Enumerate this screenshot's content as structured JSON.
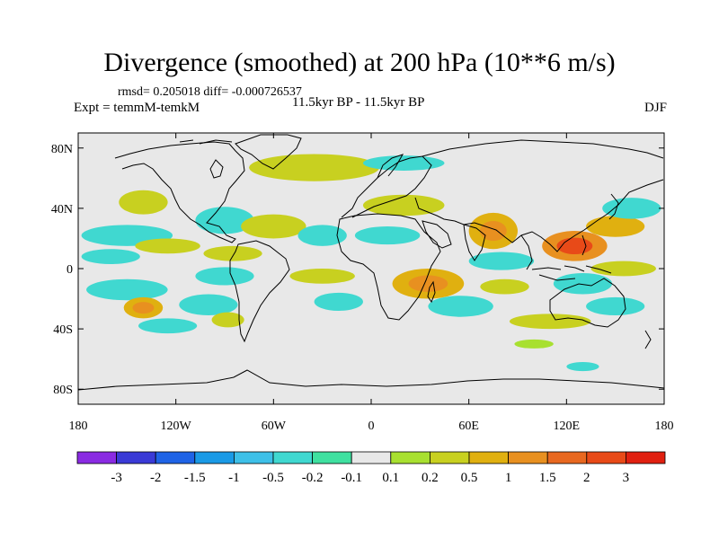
{
  "title": "Divergence (smoothed) at 200 hPa (10**6 m/s)",
  "stats": "rmsd= 0.205018 diff= -0.000726537",
  "experiment": "Expt = temmM-temkM",
  "period": "11.5kyr BP - 11.5kyr BP",
  "season": "DJF",
  "map": {
    "lon_range": [
      -180,
      180
    ],
    "lat_range": [
      -90,
      90
    ],
    "y_ticks": [
      {
        "lat": 80,
        "label": "80N"
      },
      {
        "lat": 40,
        "label": "40N"
      },
      {
        "lat": 0,
        "label": "0"
      },
      {
        "lat": -40,
        "label": "40S"
      },
      {
        "lat": -80,
        "label": "80S"
      }
    ],
    "x_ticks": [
      {
        "lon": -180,
        "label": "180"
      },
      {
        "lon": -120,
        "label": "120W"
      },
      {
        "lon": -60,
        "label": "60W"
      },
      {
        "lon": 0,
        "label": "0"
      },
      {
        "lon": 60,
        "label": "60E"
      },
      {
        "lon": 120,
        "label": "120E"
      },
      {
        "lon": 180,
        "label": "180"
      }
    ],
    "background_color": "#e8e8e8",
    "coastline_color": "#000000"
  },
  "colorbar": {
    "colors": [
      "#8a2be2",
      "#3a3ad6",
      "#1f63e6",
      "#1a9ae6",
      "#3ec0e8",
      "#40d8d0",
      "#3fe0a0",
      "#e8e8e8",
      "#a8e030",
      "#c8d020",
      "#e0b010",
      "#e89020",
      "#e86820",
      "#e84a18",
      "#e02010"
    ],
    "labels": [
      "-3",
      "-2",
      "-1.5",
      "-1",
      "-0.5",
      "-0.2",
      "-0.1",
      "0.1",
      "0.2",
      "0.5",
      "1",
      "1.5",
      "2",
      "3"
    ]
  },
  "chart_data": {
    "type": "heatmap",
    "title": "Divergence (smoothed) at 200 hPa (10**6 m/s)",
    "variable": "200 hPa divergence difference",
    "units": "10**6 m/s",
    "levels": [
      -3,
      -2,
      -1.5,
      -1,
      -0.5,
      -0.2,
      -0.1,
      0.1,
      0.2,
      0.5,
      1,
      1.5,
      2,
      3
    ],
    "xlim": [
      -180,
      180
    ],
    "ylim": [
      -90,
      90
    ],
    "features": [
      {
        "lon": -150,
        "lat": 22,
        "rx": 28,
        "ry": 7,
        "value": -0.3
      },
      {
        "lon": -160,
        "lat": 8,
        "rx": 18,
        "ry": 5,
        "value": -0.4
      },
      {
        "lon": -125,
        "lat": 15,
        "rx": 20,
        "ry": 5,
        "value": 0.3
      },
      {
        "lon": -150,
        "lat": -14,
        "rx": 25,
        "ry": 7,
        "value": -0.3
      },
      {
        "lon": -140,
        "lat": -26,
        "rx": 12,
        "ry": 7,
        "value": 0.8
      },
      {
        "lon": -125,
        "lat": -38,
        "rx": 18,
        "ry": 5,
        "value": -0.3
      },
      {
        "lon": -140,
        "lat": 44,
        "rx": 15,
        "ry": 8,
        "value": 0.4
      },
      {
        "lon": -90,
        "lat": 32,
        "rx": 18,
        "ry": 9,
        "value": -0.3
      },
      {
        "lon": -60,
        "lat": 28,
        "rx": 20,
        "ry": 8,
        "value": 0.4
      },
      {
        "lon": -85,
        "lat": 10,
        "rx": 18,
        "ry": 5,
        "value": 0.3
      },
      {
        "lon": -90,
        "lat": -5,
        "rx": 18,
        "ry": 6,
        "value": -0.3
      },
      {
        "lon": -100,
        "lat": -24,
        "rx": 18,
        "ry": 7,
        "value": -0.3
      },
      {
        "lon": -88,
        "lat": -34,
        "rx": 10,
        "ry": 5,
        "value": 0.3
      },
      {
        "lon": -30,
        "lat": 22,
        "rx": 15,
        "ry": 7,
        "value": -0.3
      },
      {
        "lon": -30,
        "lat": -5,
        "rx": 20,
        "ry": 5,
        "value": 0.3
      },
      {
        "lon": -20,
        "lat": -22,
        "rx": 15,
        "ry": 6,
        "value": -0.3
      },
      {
        "lon": -35,
        "lat": 67,
        "rx": 40,
        "ry": 9,
        "value": 0.3
      },
      {
        "lon": 20,
        "lat": 70,
        "rx": 25,
        "ry": 5,
        "value": -0.3
      },
      {
        "lon": 20,
        "lat": 42,
        "rx": 25,
        "ry": 7,
        "value": 0.4
      },
      {
        "lon": 10,
        "lat": 22,
        "rx": 20,
        "ry": 6,
        "value": -0.3
      },
      {
        "lon": 35,
        "lat": -10,
        "rx": 22,
        "ry": 10,
        "value": 0.8
      },
      {
        "lon": 55,
        "lat": -25,
        "rx": 20,
        "ry": 7,
        "value": -0.4
      },
      {
        "lon": 75,
        "lat": 25,
        "rx": 15,
        "ry": 12,
        "value": 0.7
      },
      {
        "lon": 80,
        "lat": 5,
        "rx": 20,
        "ry": 6,
        "value": -0.3
      },
      {
        "lon": 82,
        "lat": -12,
        "rx": 15,
        "ry": 5,
        "value": 0.3
      },
      {
        "lon": 125,
        "lat": 15,
        "rx": 20,
        "ry": 10,
        "value": 1.5
      },
      {
        "lon": 150,
        "lat": 28,
        "rx": 18,
        "ry": 7,
        "value": 0.6
      },
      {
        "lon": 155,
        "lat": 0,
        "rx": 20,
        "ry": 5,
        "value": 0.4
      },
      {
        "lon": 130,
        "lat": -10,
        "rx": 18,
        "ry": 7,
        "value": -0.3
      },
      {
        "lon": 160,
        "lat": 40,
        "rx": 18,
        "ry": 7,
        "value": -0.3
      },
      {
        "lon": 110,
        "lat": -35,
        "rx": 25,
        "ry": 5,
        "value": 0.3
      },
      {
        "lon": 150,
        "lat": -25,
        "rx": 18,
        "ry": 6,
        "value": -0.3
      },
      {
        "lon": 130,
        "lat": -65,
        "rx": 10,
        "ry": 3,
        "value": -0.3
      },
      {
        "lon": 100,
        "lat": -50,
        "rx": 12,
        "ry": 3,
        "value": 0.2
      }
    ]
  }
}
